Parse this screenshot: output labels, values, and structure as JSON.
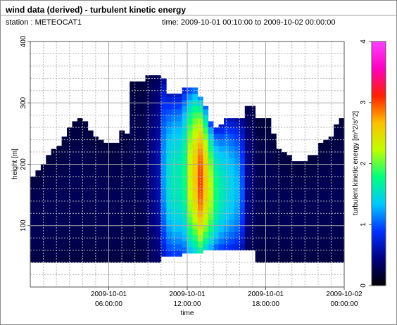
{
  "header": {
    "title": "wind data (derived) - turbulent kinetic energy",
    "station_label": "station : METEOCAT1",
    "time_label": "time: 2009-10-01 00:10:00 to 2009-10-02 00:00:00"
  },
  "colors": {
    "background_fill": "#000000",
    "colormap": [
      "#000000",
      "#000080",
      "#0030ff",
      "#00c8ff",
      "#00ff80",
      "#c0ff00",
      "#ffc000",
      "#ff2000",
      "#ff00c0",
      "#ff40ff"
    ]
  },
  "chart_data": {
    "type": "heatmap",
    "title": "wind data (derived) - turbulent kinetic energy",
    "xlabel": "time",
    "ylabel": "height [m]",
    "colorbar_label": "turbulent kinetic energy [m^2/s^2]",
    "xlim_hours": [
      0,
      24
    ],
    "ylim": [
      0,
      400
    ],
    "clim": [
      0,
      4
    ],
    "x_ticks": [
      {
        "hour": 6,
        "line1": "2009-10-01",
        "line2": "06:00:00"
      },
      {
        "hour": 12,
        "line1": "2009-10-01",
        "line2": "12:00:00"
      },
      {
        "hour": 18,
        "line1": "2009-10-01",
        "line2": "18:00:00"
      },
      {
        "hour": 24,
        "line1": "2009-10-02",
        "line2": "00:00:00"
      }
    ],
    "y_ticks": [
      100,
      200,
      300,
      400
    ],
    "colorbar_ticks": [
      0,
      1,
      2,
      3,
      4
    ],
    "grid": true,
    "column_hours": [
      0.0,
      0.4,
      0.8,
      1.2,
      1.6,
      2.0,
      2.4,
      2.8,
      3.2,
      3.6,
      4.0,
      4.4,
      4.8,
      5.2,
      5.6,
      6.0,
      6.4,
      6.8,
      7.2,
      7.6,
      8.0,
      8.4,
      8.8,
      9.2,
      9.6,
      10.0,
      10.4,
      10.8,
      11.2,
      11.6,
      12.0,
      12.4,
      12.8,
      13.2,
      13.6,
      14.0,
      14.4,
      14.8,
      15.2,
      15.6,
      16.0,
      16.4,
      16.8,
      17.2,
      17.6,
      18.0,
      18.4,
      18.8,
      19.2,
      19.6,
      20.0,
      20.4,
      20.8,
      21.2,
      21.6,
      22.0,
      22.4,
      22.8,
      23.2,
      23.6
    ],
    "column_top_heights": [
      180,
      190,
      200,
      215,
      225,
      230,
      245,
      260,
      270,
      275,
      270,
      255,
      245,
      240,
      235,
      235,
      235,
      255,
      250,
      335,
      335,
      335,
      345,
      345,
      345,
      340,
      315,
      315,
      315,
      325,
      325,
      325,
      310,
      295,
      270,
      260,
      265,
      275,
      275,
      275,
      275,
      295,
      295,
      275,
      275,
      275,
      250,
      225,
      220,
      215,
      205,
      205,
      205,
      215,
      215,
      235,
      240,
      245,
      265,
      275
    ],
    "column_bottom_heights": [
      40,
      40,
      40,
      40,
      40,
      40,
      40,
      40,
      40,
      40,
      40,
      40,
      40,
      40,
      40,
      40,
      40,
      40,
      40,
      40,
      40,
      40,
      40,
      40,
      40,
      50,
      50,
      50,
      50,
      55,
      55,
      55,
      55,
      60,
      60,
      60,
      60,
      60,
      60,
      60,
      60,
      60,
      60,
      40,
      40,
      40,
      40,
      40,
      40,
      40,
      40,
      40,
      40,
      40,
      40,
      40,
      40,
      40,
      40,
      40
    ],
    "column_peak_tke": [
      0.3,
      0.3,
      0.3,
      0.3,
      0.3,
      0.3,
      0.3,
      0.3,
      0.3,
      0.3,
      0.3,
      0.3,
      0.3,
      0.3,
      0.3,
      0.3,
      0.3,
      0.3,
      0.3,
      0.3,
      0.3,
      0.3,
      0.4,
      0.5,
      0.6,
      1.2,
      1.5,
      1.6,
      1.6,
      1.8,
      2.3,
      2.6,
      3.0,
      2.6,
      2.2,
      1.8,
      1.6,
      1.5,
      1.4,
      1.3,
      1.0,
      0.5,
      0.4,
      0.3,
      0.3,
      0.3,
      0.3,
      0.3,
      0.3,
      0.3,
      0.3,
      0.3,
      0.3,
      0.3,
      0.3,
      0.3,
      0.3,
      0.3,
      0.3,
      0.3
    ]
  }
}
